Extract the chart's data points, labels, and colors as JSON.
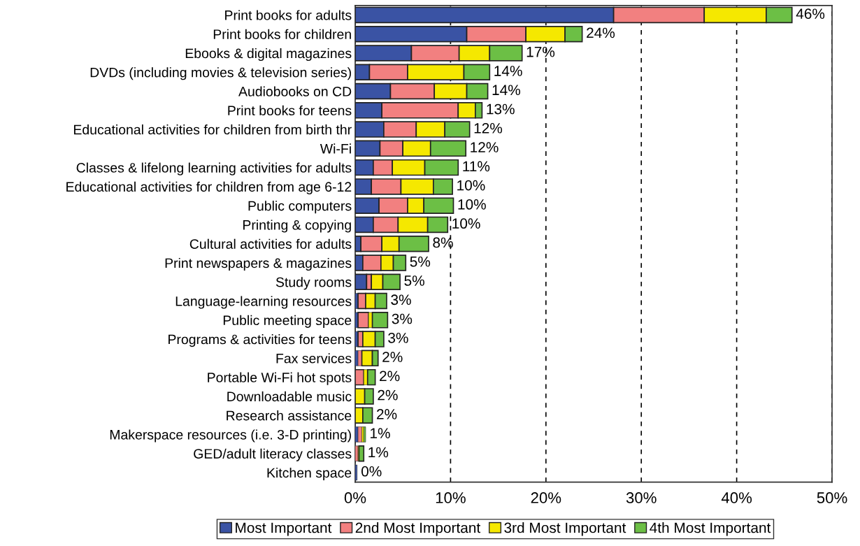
{
  "chart_data": {
    "type": "bar",
    "orientation": "horizontal",
    "stacked": true,
    "categories": [
      "Print books for adults",
      "Print books for children",
      "Ebooks & digital magazines",
      "DVDs (including movies & television series)",
      "Audiobooks on CD",
      "Print books for teens",
      "Educational activities for children from birth thr",
      "Wi-Fi",
      "Classes & lifelong learning activities for adults",
      "Educational activities for children from age 6-12",
      "Public computers",
      "Printing & copying",
      "Cultural activities for adults",
      "Print newspapers & magazines",
      "Study rooms",
      "Language-learning resources",
      "Public meeting space",
      "Programs & activities for teens",
      "Fax services",
      "Portable Wi-Fi hot spots",
      "Downloadable music",
      "Research assistance",
      "Makerspace resources (i.e. 3-D printing)",
      "GED/adult literacy classes",
      "Kitchen space"
    ],
    "series": [
      {
        "name": "Most Important",
        "color": "#3a53a4",
        "values": [
          27.1,
          11.7,
          5.9,
          1.5,
          3.7,
          2.8,
          3.0,
          2.6,
          1.9,
          1.7,
          2.5,
          1.9,
          0.6,
          0.8,
          1.2,
          0.3,
          0.3,
          0.3,
          0.3,
          0,
          0,
          0,
          0.3,
          0,
          0.2
        ]
      },
      {
        "name": "2nd Most Important",
        "color": "#f28080",
        "values": [
          9.5,
          6.2,
          5.0,
          4.0,
          4.6,
          8.0,
          3.4,
          2.4,
          2.0,
          3.1,
          3.0,
          2.6,
          2.2,
          1.9,
          0.5,
          0.8,
          1.1,
          0.5,
          0.4,
          0.9,
          0,
          0,
          0.4,
          0.3,
          0
        ]
      },
      {
        "name": "3rd Most Important",
        "color": "#f5e800",
        "values": [
          6.5,
          4.1,
          3.2,
          5.9,
          3.4,
          1.8,
          3.0,
          2.9,
          3.4,
          3.4,
          1.7,
          3.1,
          1.8,
          1.3,
          1.2,
          1.0,
          0.4,
          1.3,
          1.1,
          0.4,
          1.0,
          0.8,
          0.2,
          0.1,
          0
        ]
      },
      {
        "name": "4th Most Important",
        "color": "#6cbf45",
        "values": [
          2.7,
          1.8,
          3.4,
          2.7,
          2.2,
          0.7,
          2.6,
          3.7,
          3.5,
          2.0,
          3.1,
          2.1,
          3.1,
          1.3,
          1.8,
          1.2,
          1.6,
          0.9,
          0.6,
          0.8,
          0.9,
          1.0,
          0.2,
          0.5,
          0
        ]
      }
    ],
    "totals": [
      "46%",
      "24%",
      "17%",
      "14%",
      "14%",
      "13%",
      "12%",
      "12%",
      "11%",
      "10%",
      "10%",
      "10%",
      "8%",
      "5%",
      "5%",
      "3%",
      "3%",
      "3%",
      "2%",
      "2%",
      "2%",
      "2%",
      "1%",
      "1%",
      "0%"
    ],
    "xlim": [
      0,
      50
    ],
    "xticks": [
      {
        "value": 0,
        "label": "0%"
      },
      {
        "value": 10,
        "label": "10%"
      },
      {
        "value": 20,
        "label": "20%"
      },
      {
        "value": 30,
        "label": "30%"
      },
      {
        "value": 40,
        "label": "40%"
      },
      {
        "value": 50,
        "label": "50%"
      }
    ],
    "grid": "x",
    "legend": "bottom"
  }
}
